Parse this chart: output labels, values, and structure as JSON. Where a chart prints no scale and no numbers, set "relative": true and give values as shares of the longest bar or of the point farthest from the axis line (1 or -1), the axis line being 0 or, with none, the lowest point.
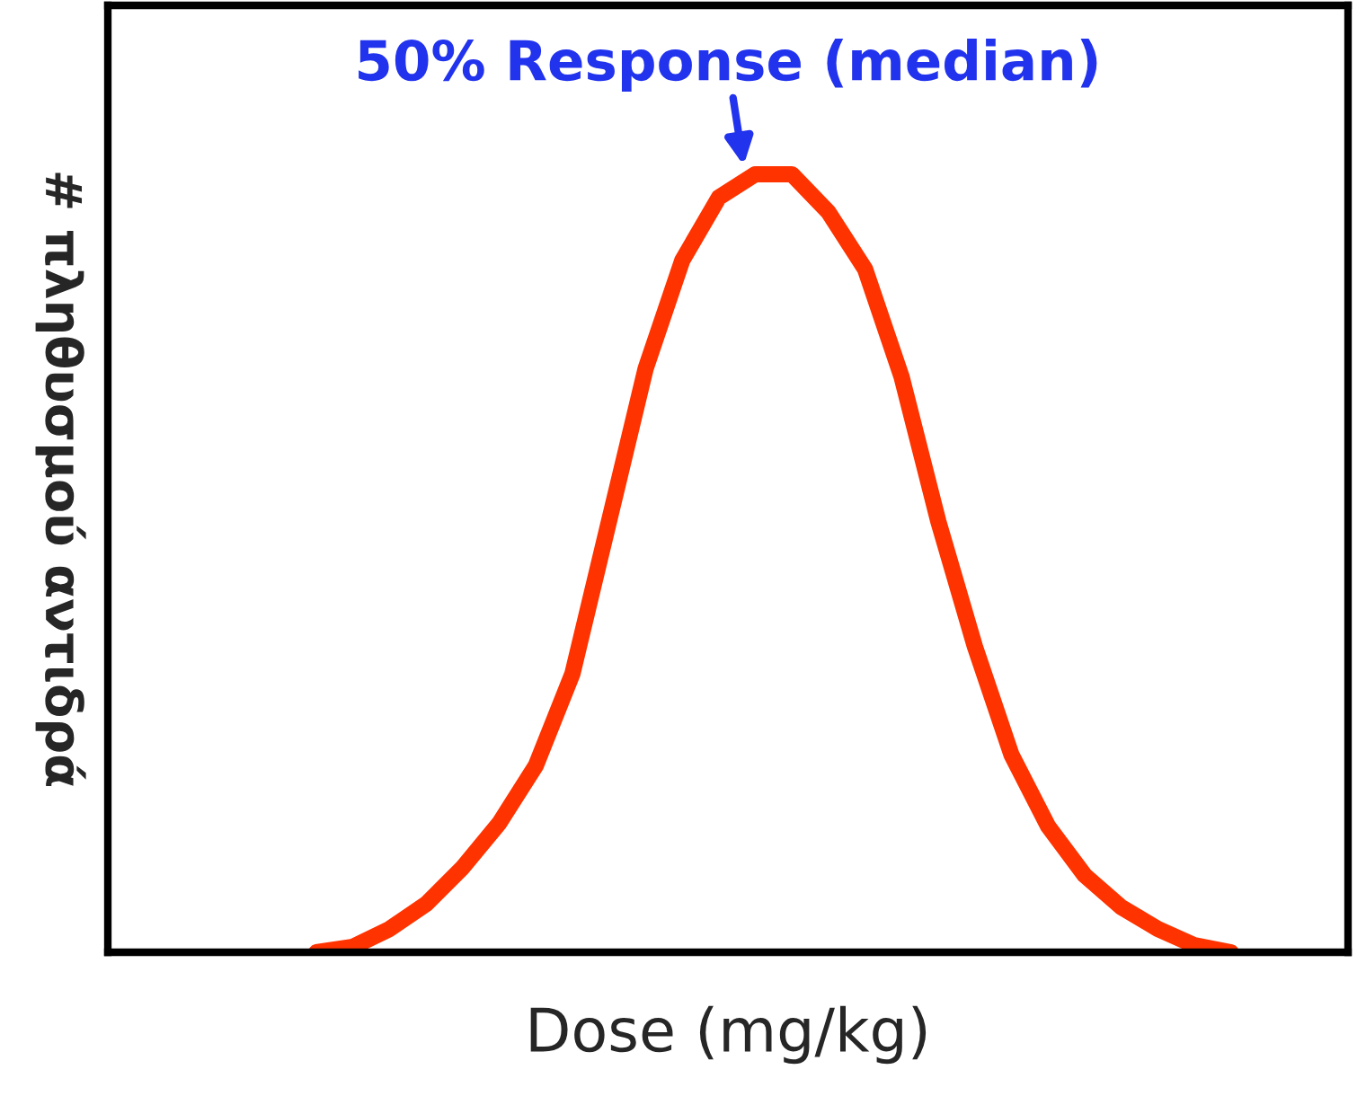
{
  "chart_data": {
    "type": "line",
    "relative": true,
    "xlabel": "Dose (mg/kg)",
    "ylabel": "# πληθυσμού αντιδρά",
    "annotations": [
      "50% Response (median)"
    ],
    "categories": [
      null,
      null,
      null,
      null,
      null,
      null,
      null,
      null,
      null,
      null,
      null,
      null,
      null,
      null,
      null,
      null,
      null,
      null,
      null,
      null,
      null,
      null,
      null,
      null,
      null,
      null
    ],
    "series": [
      {
        "color": "#ff3300",
        "values": [
          0,
          0.007,
          0.03,
          0.062,
          0.109,
          0.166,
          0.24,
          0.358,
          0.554,
          0.75,
          0.889,
          0.97,
          1,
          1,
          0.951,
          0.878,
          0.739,
          0.554,
          0.393,
          0.254,
          0.162,
          0.099,
          0.058,
          0.03,
          0.009,
          0
        ]
      }
    ],
    "grid": false,
    "legend": false,
    "marker": "none",
    "line_style": "solid"
  }
}
